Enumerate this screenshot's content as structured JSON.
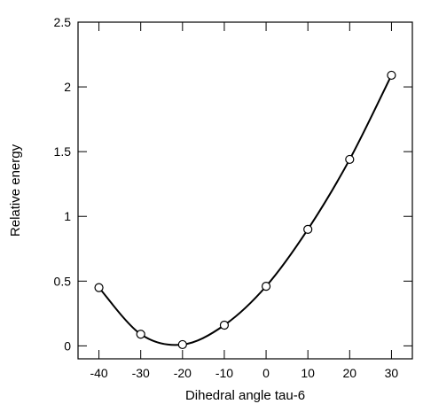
{
  "chart_data": {
    "type": "scatter",
    "title": "",
    "xlabel": "Dihedral angle tau-6",
    "ylabel": "Relative energy",
    "xlim": [
      -45,
      35
    ],
    "ylim": [
      -0.1,
      2.5
    ],
    "xticks": [
      -40,
      -30,
      -20,
      -10,
      0,
      10,
      20,
      30
    ],
    "yticks": [
      0,
      0.5,
      1,
      1.5,
      2,
      2.5
    ],
    "xtick_labels": [
      "-40",
      "-30",
      "-20",
      "-10",
      "0",
      "10",
      "20",
      "30"
    ],
    "ytick_labels": [
      "0",
      "0.5",
      "1",
      "1.5",
      "2",
      "2.5"
    ],
    "grid": false,
    "legend": "none",
    "series": [
      {
        "marker": "open-circle",
        "x": [
          -40,
          -30,
          -20,
          -10,
          0,
          10,
          20,
          30
        ],
        "y": [
          0.45,
          0.09,
          0.01,
          0.16,
          0.46,
          0.9,
          1.44,
          2.09
        ]
      }
    ],
    "fit_curve": "smooth curve through points",
    "colors": {
      "axis": "#000000",
      "line": "#000000",
      "marker": "#000000"
    }
  }
}
